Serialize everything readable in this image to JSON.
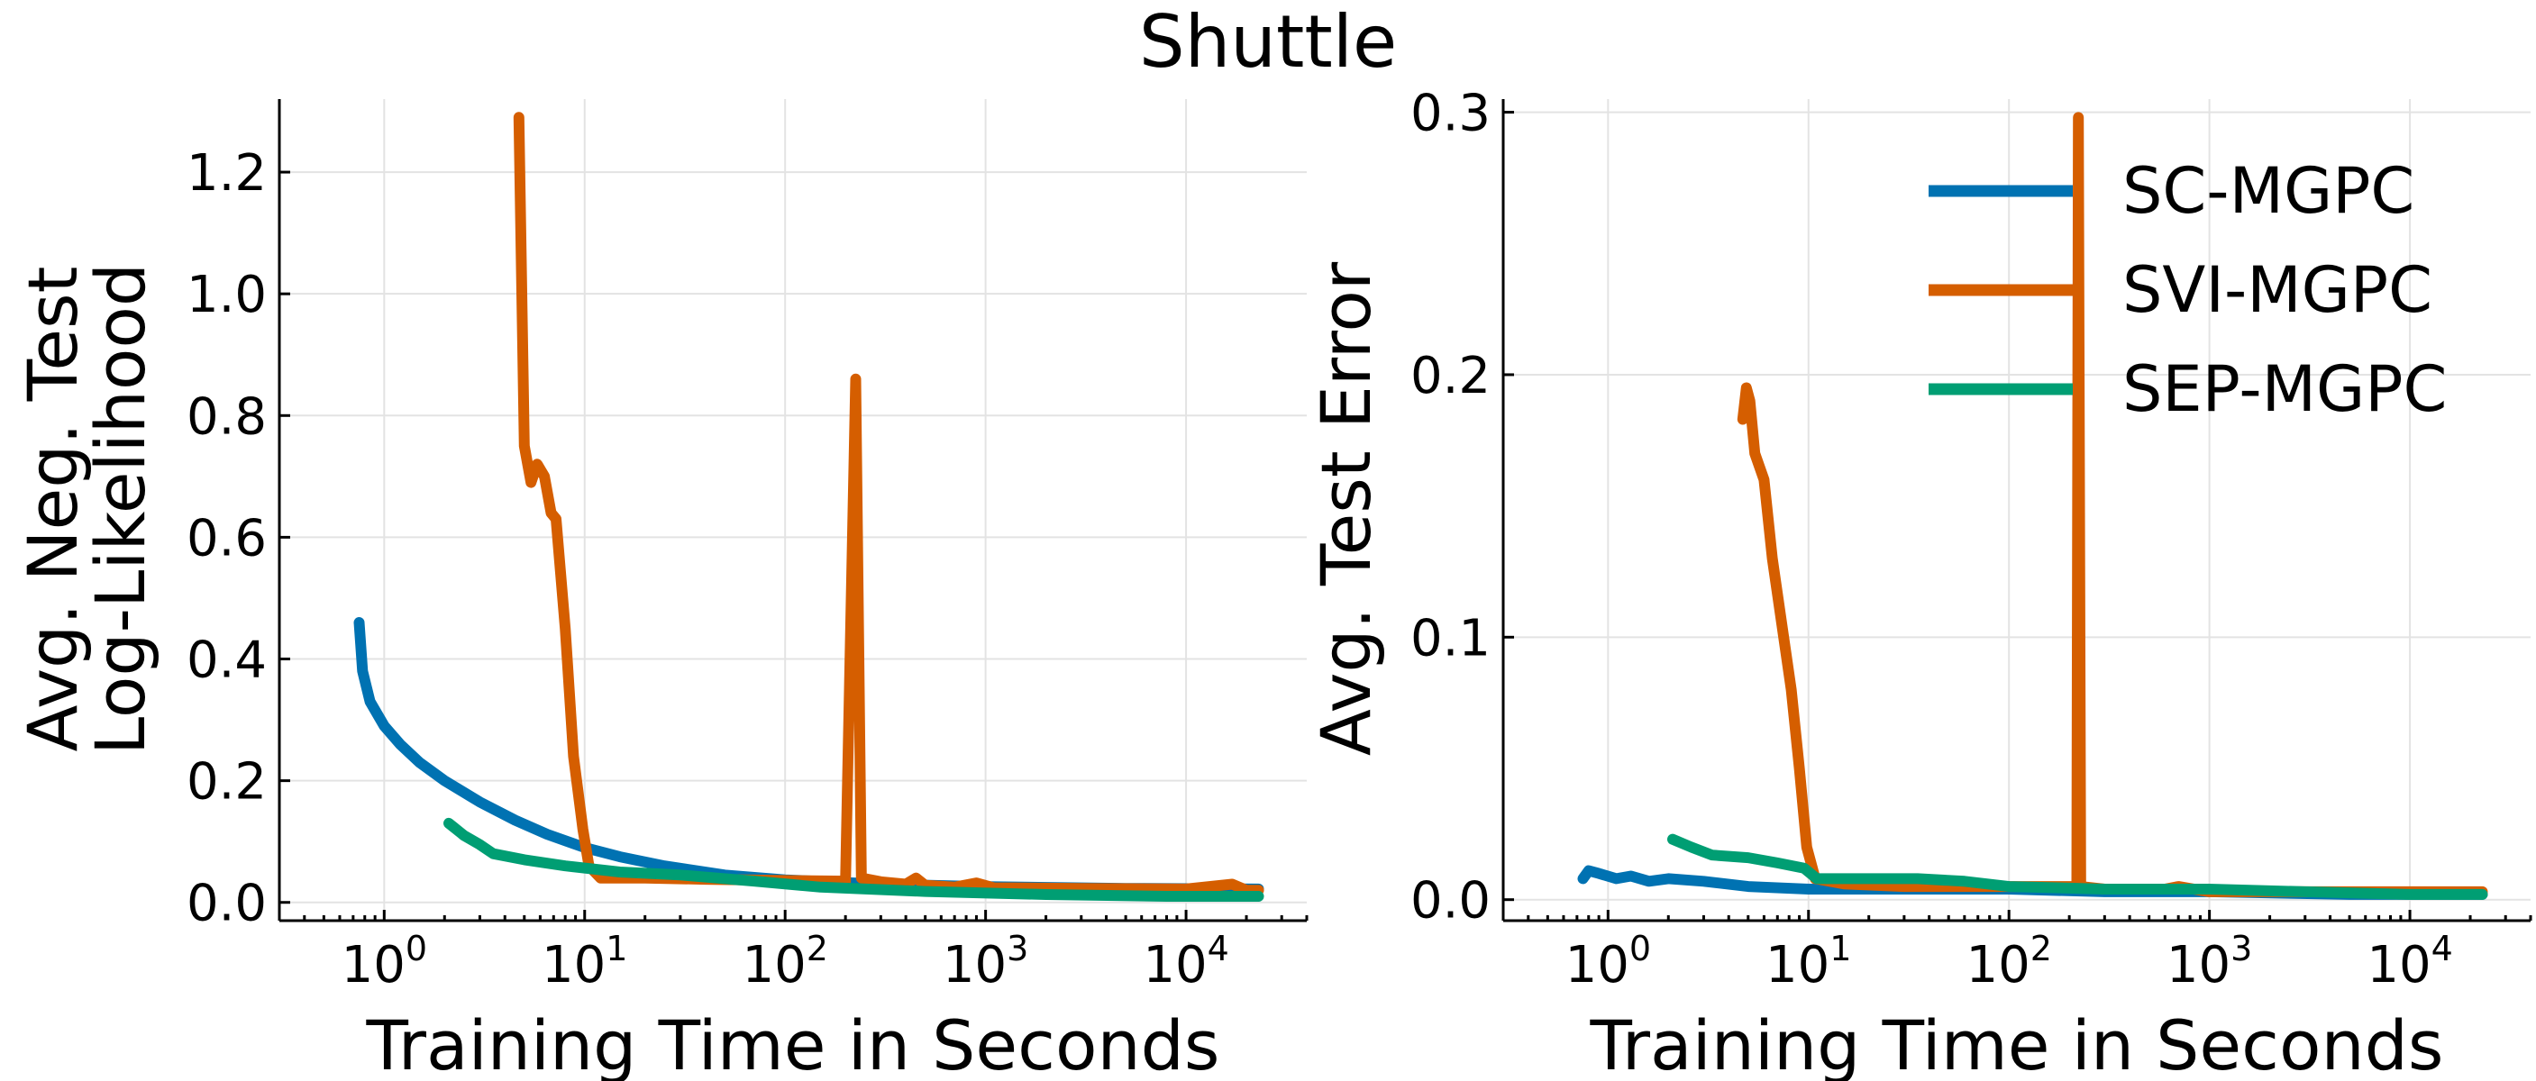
{
  "figure_title": "Shuttle",
  "chart_data": [
    {
      "type": "line",
      "title": "",
      "xlabel": "Training Time in Seconds",
      "ylabel_lines": [
        "Avg. Neg. Test",
        "Log-Likelihood"
      ],
      "xscale": "log",
      "xlim": [
        0.3,
        40000
      ],
      "ylim": [
        -0.03,
        1.32
      ],
      "xticks": [
        1,
        10,
        100,
        1000,
        10000
      ],
      "xtick_labels": [
        {
          "base": "10",
          "exp": "0"
        },
        {
          "base": "10",
          "exp": "1"
        },
        {
          "base": "10",
          "exp": "2"
        },
        {
          "base": "10",
          "exp": "3"
        },
        {
          "base": "10",
          "exp": "4"
        }
      ],
      "yticks": [
        0.0,
        0.2,
        0.4,
        0.6,
        0.8,
        1.0,
        1.2
      ],
      "ytick_labels": [
        "0.0",
        "0.2",
        "0.4",
        "0.6",
        "0.8",
        "1.0",
        "1.2"
      ],
      "grid": true,
      "legend": false,
      "series": [
        {
          "name": "SC-MGPC",
          "color": "#0072b2",
          "points": [
            [
              0.75,
              0.46
            ],
            [
              0.78,
              0.38
            ],
            [
              0.85,
              0.33
            ],
            [
              1.0,
              0.29
            ],
            [
              1.2,
              0.26
            ],
            [
              1.5,
              0.23
            ],
            [
              2,
              0.2
            ],
            [
              3,
              0.165
            ],
            [
              4.5,
              0.135
            ],
            [
              6.5,
              0.112
            ],
            [
              10,
              0.09
            ],
            [
              15,
              0.075
            ],
            [
              25,
              0.06
            ],
            [
              50,
              0.045
            ],
            [
              100,
              0.037
            ],
            [
              300,
              0.03
            ],
            [
              1000,
              0.026
            ],
            [
              5000,
              0.023
            ],
            [
              23000,
              0.022
            ]
          ]
        },
        {
          "name": "SVI-MGPC",
          "color": "#d55e00",
          "points": [
            [
              4.7,
              1.29
            ],
            [
              5.0,
              0.75
            ],
            [
              5.4,
              0.69
            ],
            [
              5.8,
              0.72
            ],
            [
              6.3,
              0.7
            ],
            [
              6.8,
              0.64
            ],
            [
              7.2,
              0.63
            ],
            [
              8.0,
              0.45
            ],
            [
              8.8,
              0.24
            ],
            [
              9.8,
              0.12
            ],
            [
              10.5,
              0.06
            ],
            [
              12,
              0.04
            ],
            [
              20,
              0.04
            ],
            [
              40,
              0.038
            ],
            [
              100,
              0.036
            ],
            [
              200,
              0.035
            ],
            [
              225,
              0.86
            ],
            [
              240,
              0.04
            ],
            [
              300,
              0.034
            ],
            [
              400,
              0.03
            ],
            [
              450,
              0.04
            ],
            [
              500,
              0.028
            ],
            [
              700,
              0.025
            ],
            [
              900,
              0.032
            ],
            [
              1100,
              0.024
            ],
            [
              3000,
              0.023
            ],
            [
              10000,
              0.022
            ],
            [
              17000,
              0.03
            ],
            [
              20000,
              0.02
            ],
            [
              23000,
              0.02
            ]
          ]
        },
        {
          "name": "SEP-MGPC",
          "color": "#009e73",
          "points": [
            [
              2.1,
              0.13
            ],
            [
              2.5,
              0.11
            ],
            [
              3,
              0.095
            ],
            [
              3.5,
              0.08
            ],
            [
              5,
              0.07
            ],
            [
              8,
              0.06
            ],
            [
              15,
              0.05
            ],
            [
              30,
              0.045
            ],
            [
              70,
              0.035
            ],
            [
              150,
              0.025
            ],
            [
              500,
              0.018
            ],
            [
              2000,
              0.013
            ],
            [
              8000,
              0.01
            ],
            [
              23000,
              0.01
            ]
          ]
        }
      ]
    },
    {
      "type": "line",
      "title": "",
      "xlabel": "Training Time in Seconds",
      "ylabel_lines": [
        "Avg. Test Error"
      ],
      "xscale": "log",
      "xlim": [
        0.3,
        40000
      ],
      "ylim": [
        -0.008,
        0.305
      ],
      "xticks": [
        1,
        10,
        100,
        1000,
        10000
      ],
      "xtick_labels": [
        {
          "base": "10",
          "exp": "0"
        },
        {
          "base": "10",
          "exp": "1"
        },
        {
          "base": "10",
          "exp": "2"
        },
        {
          "base": "10",
          "exp": "3"
        },
        {
          "base": "10",
          "exp": "4"
        }
      ],
      "yticks": [
        0.0,
        0.1,
        0.2,
        0.3
      ],
      "ytick_labels": [
        "0.0",
        "0.1",
        "0.2",
        "0.3"
      ],
      "grid": true,
      "legend": true,
      "legend_position": "top-right",
      "series": [
        {
          "name": "SC-MGPC",
          "color": "#0072b2",
          "points": [
            [
              0.75,
              0.008
            ],
            [
              0.8,
              0.011
            ],
            [
              0.9,
              0.01
            ],
            [
              1.1,
              0.008
            ],
            [
              1.3,
              0.009
            ],
            [
              1.6,
              0.007
            ],
            [
              2,
              0.008
            ],
            [
              3,
              0.007
            ],
            [
              5,
              0.005
            ],
            [
              10,
              0.004
            ],
            [
              30,
              0.004
            ],
            [
              100,
              0.004
            ],
            [
              300,
              0.003
            ],
            [
              1000,
              0.003
            ],
            [
              5000,
              0.002
            ],
            [
              23000,
              0.002
            ]
          ]
        },
        {
          "name": "SVI-MGPC",
          "color": "#d55e00",
          "points": [
            [
              4.7,
              0.183
            ],
            [
              4.9,
              0.195
            ],
            [
              5.1,
              0.19
            ],
            [
              5.4,
              0.17
            ],
            [
              6.0,
              0.16
            ],
            [
              6.6,
              0.13
            ],
            [
              7.2,
              0.11
            ],
            [
              8.2,
              0.08
            ],
            [
              9.0,
              0.05
            ],
            [
              9.8,
              0.02
            ],
            [
              10.8,
              0.008
            ],
            [
              15,
              0.006
            ],
            [
              30,
              0.005
            ],
            [
              100,
              0.005
            ],
            [
              218,
              0.005
            ],
            [
              222,
              0.298
            ],
            [
              228,
              0.005
            ],
            [
              300,
              0.004
            ],
            [
              600,
              0.004
            ],
            [
              700,
              0.005
            ],
            [
              1000,
              0.003
            ],
            [
              3000,
              0.003
            ],
            [
              10000,
              0.003
            ],
            [
              23000,
              0.003
            ]
          ]
        },
        {
          "name": "SEP-MGPC",
          "color": "#009e73",
          "points": [
            [
              2.1,
              0.023
            ],
            [
              2.6,
              0.02
            ],
            [
              3.3,
              0.017
            ],
            [
              5,
              0.016
            ],
            [
              7,
              0.014
            ],
            [
              9.5,
              0.012
            ],
            [
              11,
              0.008
            ],
            [
              20,
              0.008
            ],
            [
              35,
              0.008
            ],
            [
              60,
              0.007
            ],
            [
              100,
              0.005
            ],
            [
              300,
              0.004
            ],
            [
              1000,
              0.004
            ],
            [
              3000,
              0.003
            ],
            [
              10000,
              0.002
            ],
            [
              23000,
              0.002
            ]
          ]
        }
      ]
    }
  ]
}
